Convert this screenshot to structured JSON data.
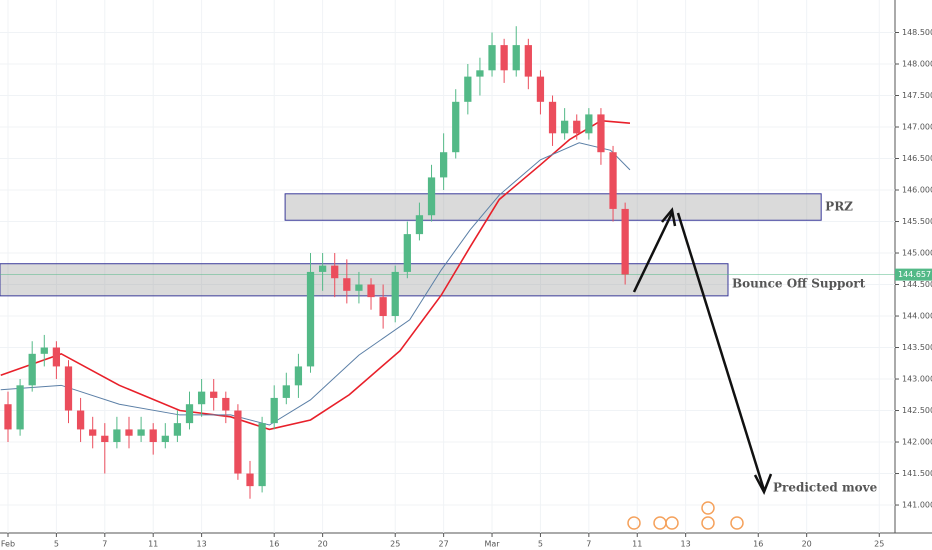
{
  "chart_data": {
    "type": "candlestick",
    "xlim": [
      -0.33,
      36.65
    ],
    "ylim": [
      140.556,
      149.016
    ],
    "xticks": [
      {
        "value": 0,
        "label": "Feb"
      },
      {
        "value": 2,
        "label": "5"
      },
      {
        "value": 4,
        "label": "7"
      },
      {
        "value": 6,
        "label": "11"
      },
      {
        "value": 8,
        "label": "13"
      },
      {
        "value": 11,
        "label": "16"
      },
      {
        "value": 13,
        "label": "20"
      },
      {
        "value": 16,
        "label": "25"
      },
      {
        "value": 18,
        "label": "27"
      },
      {
        "value": 20,
        "label": "Mar"
      },
      {
        "value": 22,
        "label": "5"
      },
      {
        "value": 24,
        "label": "7"
      },
      {
        "value": 26,
        "label": "11"
      },
      {
        "value": 28,
        "label": "13"
      },
      {
        "value": 31,
        "label": "16"
      },
      {
        "value": 33,
        "label": "20"
      },
      {
        "value": 36,
        "label": "25"
      }
    ],
    "yticks": [
      {
        "value": 141,
        "label": "141.000"
      },
      {
        "value": 141.5,
        "label": "141.500"
      },
      {
        "value": 142,
        "label": "142.000"
      },
      {
        "value": 142.5,
        "label": "142.500"
      },
      {
        "value": 143,
        "label": "143.000"
      },
      {
        "value": 143.5,
        "label": "143.500"
      },
      {
        "value": 144,
        "label": "144.000"
      },
      {
        "value": 144.5,
        "label": "144.500"
      },
      {
        "value": 145,
        "label": "145.000"
      },
      {
        "value": 145.5,
        "label": "145.500"
      },
      {
        "value": 146,
        "label": "146.000"
      },
      {
        "value": 146.5,
        "label": "146.500"
      },
      {
        "value": 147,
        "label": "147.000"
      },
      {
        "value": 147.5,
        "label": "147.500"
      },
      {
        "value": 148,
        "label": "148.000"
      },
      {
        "value": 148.5,
        "label": "148.500"
      }
    ],
    "up_color": "#53b987",
    "down_color": "#eb4d5c",
    "x": [
      0,
      0.5,
      1,
      1.5,
      2,
      2.5,
      3,
      3.5,
      4,
      4.5,
      5,
      5.5,
      6,
      6.5,
      7,
      7.5,
      8,
      8.5,
      9,
      9.5,
      10,
      10.5,
      11,
      11.5,
      12,
      12.5,
      13,
      13.5,
      14,
      14.5,
      15,
      15.5,
      16,
      16.5,
      17,
      17.5,
      18,
      18.5,
      19,
      19.5,
      20,
      20.5,
      21,
      21.5,
      22,
      22.5,
      23,
      23.5,
      24,
      24.5,
      25,
      25.5
    ],
    "candles": [
      [
        142.6,
        142.8,
        142.0,
        142.2
      ],
      [
        142.2,
        143.0,
        142.1,
        142.9
      ],
      [
        142.9,
        143.6,
        142.8,
        143.4
      ],
      [
        143.4,
        143.7,
        143.2,
        143.5
      ],
      [
        143.5,
        143.6,
        143.0,
        143.2
      ],
      [
        143.2,
        143.3,
        142.3,
        142.5
      ],
      [
        142.5,
        142.7,
        142.0,
        142.2
      ],
      [
        142.2,
        142.4,
        141.9,
        142.1
      ],
      [
        142.1,
        142.3,
        141.5,
        142.0
      ],
      [
        142.0,
        142.4,
        141.9,
        142.2
      ],
      [
        142.2,
        142.4,
        141.9,
        142.1
      ],
      [
        142.1,
        142.4,
        142.0,
        142.2
      ],
      [
        142.2,
        142.3,
        141.8,
        142.0
      ],
      [
        142.0,
        142.3,
        141.9,
        142.1
      ],
      [
        142.1,
        142.5,
        142.0,
        142.3
      ],
      [
        142.3,
        142.8,
        142.2,
        142.6
      ],
      [
        142.6,
        143.0,
        142.4,
        142.8
      ],
      [
        142.8,
        143.0,
        142.5,
        142.7
      ],
      [
        142.7,
        142.8,
        142.3,
        142.5
      ],
      [
        142.5,
        142.6,
        141.4,
        141.5
      ],
      [
        141.5,
        141.7,
        141.1,
        141.3
      ],
      [
        141.3,
        142.4,
        141.2,
        142.3
      ],
      [
        142.3,
        142.9,
        142.2,
        142.7
      ],
      [
        142.7,
        143.1,
        142.6,
        142.9
      ],
      [
        142.9,
        143.4,
        142.7,
        143.2
      ],
      [
        143.2,
        145.0,
        143.1,
        144.7
      ],
      [
        144.7,
        145.0,
        144.4,
        144.8
      ],
      [
        144.8,
        145.0,
        144.3,
        144.6
      ],
      [
        144.6,
        144.9,
        144.2,
        144.4
      ],
      [
        144.4,
        144.7,
        144.2,
        144.5
      ],
      [
        144.5,
        144.6,
        144.1,
        144.3
      ],
      [
        144.3,
        144.5,
        143.8,
        144.0
      ],
      [
        144.0,
        144.8,
        143.9,
        144.7
      ],
      [
        144.7,
        145.5,
        144.6,
        145.3
      ],
      [
        145.3,
        145.8,
        145.2,
        145.6
      ],
      [
        145.6,
        146.4,
        145.5,
        146.2
      ],
      [
        146.2,
        146.9,
        146.0,
        146.6
      ],
      [
        146.6,
        147.6,
        146.5,
        147.4
      ],
      [
        147.4,
        148.0,
        147.2,
        147.8
      ],
      [
        147.8,
        148.1,
        147.5,
        147.9
      ],
      [
        147.9,
        148.5,
        147.8,
        148.3
      ],
      [
        148.3,
        148.4,
        147.7,
        147.9
      ],
      [
        147.9,
        148.6,
        147.8,
        148.3
      ],
      [
        148.3,
        148.4,
        147.6,
        147.8
      ],
      [
        147.8,
        147.9,
        147.2,
        147.4
      ],
      [
        147.4,
        147.5,
        146.7,
        146.9
      ],
      [
        146.9,
        147.3,
        146.8,
        147.1
      ],
      [
        147.1,
        147.2,
        146.8,
        146.9
      ],
      [
        146.9,
        147.3,
        146.8,
        147.2
      ],
      [
        147.2,
        147.3,
        146.4,
        146.6
      ],
      [
        146.6,
        146.7,
        145.5,
        145.7
      ],
      [
        145.7,
        145.8,
        144.5,
        144.66
      ]
    ],
    "lines": [
      {
        "color": "#e8202a",
        "x": [
          -0.3,
          2.2,
          4.6,
          7.1,
          9.2,
          10.8,
          12.5,
          14.1,
          16.2,
          17.9,
          19.1,
          20.3,
          22.0,
          23.2,
          24.5,
          25.7
        ],
        "values": [
          143.06,
          143.4,
          142.9,
          142.5,
          142.4,
          142.2,
          142.35,
          142.75,
          143.45,
          144.33,
          145.1,
          145.85,
          146.4,
          146.8,
          147.1,
          147.06
        ]
      },
      {
        "color": "#5b7fa6",
        "x": [
          -0.3,
          2.2,
          4.6,
          7.1,
          9.2,
          10.8,
          12.5,
          14.5,
          16.6,
          17.9,
          19.1,
          20.3,
          22.0,
          23.6,
          24.9,
          25.7
        ],
        "values": [
          142.83,
          142.9,
          142.6,
          142.43,
          142.43,
          142.27,
          142.67,
          143.38,
          143.94,
          144.73,
          145.37,
          145.92,
          146.48,
          146.75,
          146.63,
          146.32
        ]
      }
    ],
    "zones": [
      {
        "label": "PRZ",
        "x": [
          11.45,
          33.6
        ],
        "y": [
          145.52,
          145.94
        ]
      },
      {
        "label": "Bounce Off Support",
        "x": [
          -0.33,
          29.75
        ],
        "y": [
          144.32,
          144.83
        ]
      }
    ],
    "last_price": {
      "value": 144.657,
      "label": "144.657"
    },
    "annotation": "Predicted move"
  }
}
